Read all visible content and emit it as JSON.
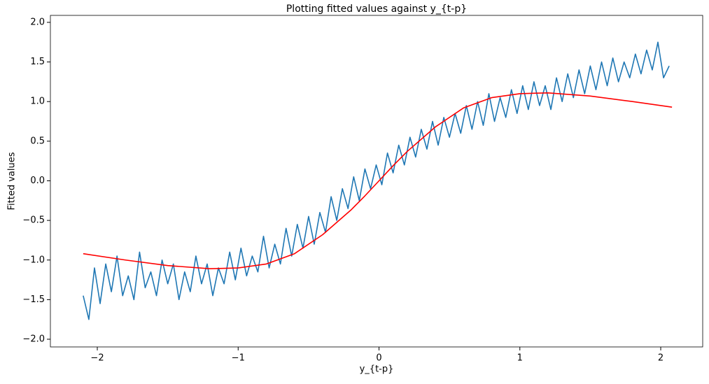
{
  "chart_data": {
    "type": "line",
    "title": "Plotting fitted values against y_{t-p}",
    "x_label": "y_{t-p}",
    "y_label": "Fitted values",
    "xlim": [
      -2.333,
      2.298
    ],
    "ylim": [
      -2.097,
      2.088
    ],
    "xticks": [
      {
        "value": -2,
        "label": "−2"
      },
      {
        "value": -1,
        "label": "−1"
      },
      0,
      1,
      2
    ],
    "yticks": [
      {
        "value": -2.0,
        "label": "−2.0"
      },
      {
        "value": -1.5,
        "label": "−1.5"
      },
      {
        "value": -1.0,
        "label": "−1.0"
      },
      {
        "value": -0.5,
        "label": "−0.5"
      },
      {
        "value": 0.0,
        "label": "0.0"
      },
      {
        "value": 0.5,
        "label": "0.5"
      },
      {
        "value": 1.0,
        "label": "1.0"
      },
      {
        "value": 1.5,
        "label": "1.5"
      },
      {
        "value": 2.0,
        "label": "2.0"
      }
    ],
    "series": [
      {
        "color": "#1f77b4",
        "x": [
          -2.1,
          -2.06,
          -2.02,
          -1.98,
          -1.94,
          -1.9,
          -1.86,
          -1.82,
          -1.78,
          -1.74,
          -1.7,
          -1.66,
          -1.62,
          -1.58,
          -1.54,
          -1.5,
          -1.46,
          -1.42,
          -1.38,
          -1.34,
          -1.3,
          -1.26,
          -1.22,
          -1.18,
          -1.14,
          -1.1,
          -1.06,
          -1.02,
          -0.98,
          -0.94,
          -0.9,
          -0.86,
          -0.82,
          -0.78,
          -0.74,
          -0.7,
          -0.66,
          -0.62,
          -0.58,
          -0.54,
          -0.5,
          -0.46,
          -0.42,
          -0.38,
          -0.34,
          -0.3,
          -0.26,
          -0.22,
          -0.18,
          -0.14,
          -0.1,
          -0.06,
          -0.02,
          0.02,
          0.06,
          0.1,
          0.14,
          0.18,
          0.22,
          0.26,
          0.3,
          0.34,
          0.38,
          0.42,
          0.46,
          0.5,
          0.54,
          0.58,
          0.62,
          0.66,
          0.7,
          0.74,
          0.78,
          0.82,
          0.86,
          0.9,
          0.94,
          0.98,
          1.02,
          1.06,
          1.1,
          1.14,
          1.18,
          1.22,
          1.26,
          1.3,
          1.34,
          1.38,
          1.42,
          1.46,
          1.5,
          1.54,
          1.58,
          1.62,
          1.66,
          1.7,
          1.74,
          1.78,
          1.82,
          1.86,
          1.9,
          1.94,
          1.98,
          2.02,
          2.06
        ],
        "values": [
          -1.45,
          -1.75,
          -1.1,
          -1.55,
          -1.05,
          -1.4,
          -0.95,
          -1.45,
          -1.2,
          -1.5,
          -0.9,
          -1.35,
          -1.15,
          -1.45,
          -1.0,
          -1.3,
          -1.05,
          -1.5,
          -1.15,
          -1.4,
          -0.95,
          -1.3,
          -1.05,
          -1.45,
          -1.1,
          -1.3,
          -0.9,
          -1.25,
          -0.85,
          -1.2,
          -0.95,
          -1.15,
          -0.7,
          -1.1,
          -0.8,
          -1.05,
          -0.6,
          -0.95,
          -0.55,
          -0.85,
          -0.45,
          -0.8,
          -0.4,
          -0.65,
          -0.2,
          -0.5,
          -0.1,
          -0.35,
          0.05,
          -0.25,
          0.15,
          -0.1,
          0.2,
          -0.05,
          0.35,
          0.1,
          0.45,
          0.2,
          0.55,
          0.3,
          0.65,
          0.4,
          0.75,
          0.45,
          0.8,
          0.55,
          0.85,
          0.6,
          0.95,
          0.65,
          1.0,
          0.7,
          1.1,
          0.75,
          1.05,
          0.8,
          1.15,
          0.85,
          1.2,
          0.9,
          1.25,
          0.95,
          1.2,
          0.9,
          1.3,
          1.0,
          1.35,
          1.05,
          1.4,
          1.1,
          1.45,
          1.15,
          1.5,
          1.2,
          1.55,
          1.25,
          1.5,
          1.3,
          1.6,
          1.35,
          1.65,
          1.4,
          1.75,
          1.3,
          1.45
        ]
      },
      {
        "color": "#ff0000",
        "x": [
          -2.1,
          -1.8,
          -1.5,
          -1.2,
          -1.0,
          -0.8,
          -0.6,
          -0.4,
          -0.2,
          -0.1,
          0,
          0.1,
          0.2,
          0.4,
          0.6,
          0.8,
          1.0,
          1.2,
          1.5,
          1.8,
          2.08
        ],
        "values": [
          -0.92,
          -1.0,
          -1.07,
          -1.11,
          -1.1,
          -1.05,
          -0.92,
          -0.68,
          -0.37,
          -0.19,
          0.0,
          0.19,
          0.37,
          0.68,
          0.92,
          1.05,
          1.1,
          1.11,
          1.07,
          1.0,
          0.93
        ]
      }
    ]
  }
}
